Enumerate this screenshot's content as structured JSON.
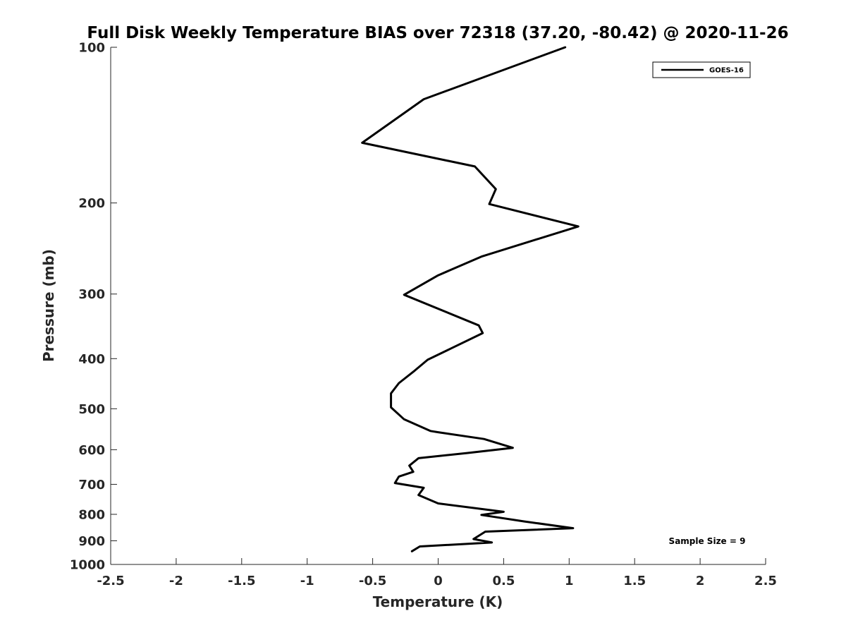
{
  "chart_data": {
    "type": "line",
    "title": "Full Disk Weekly Temperature BIAS over 72318 (37.20, -80.42) @ 2020-11-26",
    "xlabel": "Temperature (K)",
    "ylabel": "Pressure (mb)",
    "xlim": [
      -2.5,
      2.5
    ],
    "ylim": [
      1000,
      100
    ],
    "yscale": "log",
    "y_reversed": true,
    "grid": false,
    "xticks": [
      -2.5,
      -2,
      -1.5,
      -1,
      -0.5,
      0,
      0.5,
      1,
      1.5,
      2,
      2.5
    ],
    "xtick_labels": [
      "-2.5",
      "-2",
      "-1.5",
      "-1",
      "-0.5",
      "0",
      "0.5",
      "1",
      "1.5",
      "2",
      "2.5"
    ],
    "yticks": [
      100,
      200,
      300,
      400,
      500,
      600,
      700,
      800,
      900,
      1000
    ],
    "ytick_labels": [
      "100",
      "200",
      "300",
      "400",
      "500",
      "600",
      "700",
      "800",
      "900",
      "1000"
    ],
    "legend_position": "top-right",
    "annotation": "Sample Size = 9",
    "series": [
      {
        "name": "GOES-16",
        "color": "#000000",
        "points": [
          {
            "x": 0.97,
            "p": 100
          },
          {
            "x": -0.11,
            "p": 126
          },
          {
            "x": -0.58,
            "p": 153
          },
          {
            "x": 0.28,
            "p": 170
          },
          {
            "x": 0.44,
            "p": 188
          },
          {
            "x": 0.39,
            "p": 201
          },
          {
            "x": 1.07,
            "p": 222
          },
          {
            "x": 0.33,
            "p": 254
          },
          {
            "x": 0.0,
            "p": 276
          },
          {
            "x": -0.26,
            "p": 301
          },
          {
            "x": 0.31,
            "p": 345
          },
          {
            "x": 0.34,
            "p": 357
          },
          {
            "x": 0.1,
            "p": 382
          },
          {
            "x": -0.08,
            "p": 402
          },
          {
            "x": -0.18,
            "p": 422
          },
          {
            "x": -0.3,
            "p": 446
          },
          {
            "x": -0.36,
            "p": 467
          },
          {
            "x": -0.36,
            "p": 497
          },
          {
            "x": -0.26,
            "p": 524
          },
          {
            "x": -0.06,
            "p": 552
          },
          {
            "x": 0.0,
            "p": 555
          },
          {
            "x": 0.35,
            "p": 572
          },
          {
            "x": 0.57,
            "p": 595
          },
          {
            "x": 0.22,
            "p": 609
          },
          {
            "x": -0.15,
            "p": 623
          },
          {
            "x": -0.22,
            "p": 644
          },
          {
            "x": -0.19,
            "p": 662
          },
          {
            "x": -0.3,
            "p": 676
          },
          {
            "x": -0.33,
            "p": 696
          },
          {
            "x": -0.11,
            "p": 711
          },
          {
            "x": -0.15,
            "p": 734
          },
          {
            "x": 0.0,
            "p": 762
          },
          {
            "x": 0.5,
            "p": 791
          },
          {
            "x": 0.33,
            "p": 802
          },
          {
            "x": 0.66,
            "p": 826
          },
          {
            "x": 1.03,
            "p": 851
          },
          {
            "x": 0.36,
            "p": 864
          },
          {
            "x": 0.27,
            "p": 893
          },
          {
            "x": 0.41,
            "p": 907
          },
          {
            "x": -0.14,
            "p": 923
          },
          {
            "x": -0.2,
            "p": 943
          }
        ]
      }
    ]
  }
}
